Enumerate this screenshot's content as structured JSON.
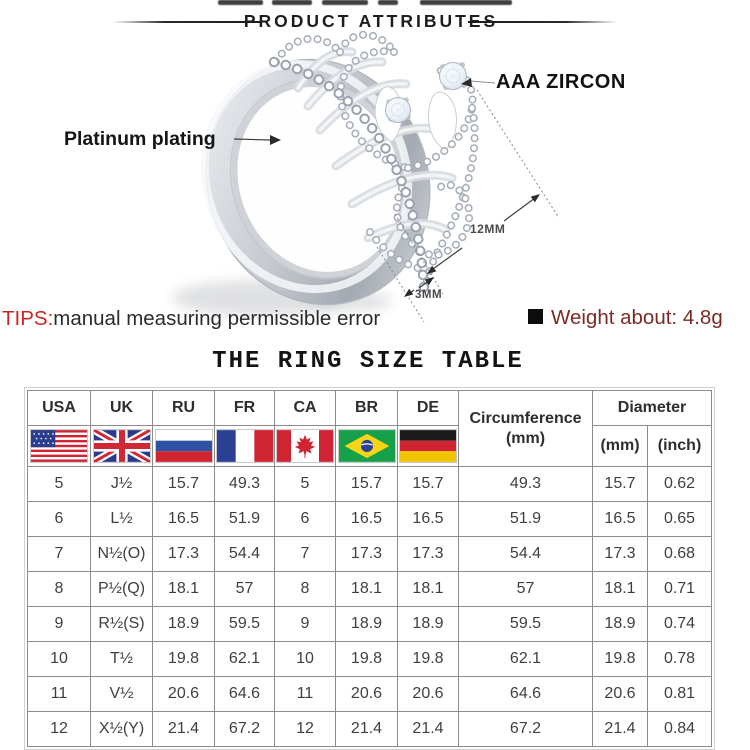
{
  "banner": {
    "section_title": "PRODUCT ATTRIBUTES"
  },
  "figure": {
    "annotations": {
      "plating": "Platinum plating",
      "zircon": "AAA ZIRCON",
      "crown_height": "12MM",
      "band_width": "3MM"
    },
    "icons": {
      "ring": "crown-ring-photo",
      "bullet": "black-square-bullet-icon"
    }
  },
  "notes": {
    "tips_label": "TIPS:",
    "tips_text": "manual measuring permissible error",
    "weight_text": "Weight about: 4.8g"
  },
  "size_table": {
    "title": "THE RING SIZE TABLE",
    "country_columns": [
      {
        "code": "USA",
        "flag": "flag-usa-icon"
      },
      {
        "code": "UK",
        "flag": "flag-uk-icon"
      },
      {
        "code": "RU",
        "flag": "flag-russia-icon"
      },
      {
        "code": "FR",
        "flag": "flag-france-icon"
      },
      {
        "code": "CA",
        "flag": "flag-canada-icon"
      },
      {
        "code": "BR",
        "flag": "flag-brazil-icon"
      },
      {
        "code": "DE",
        "flag": "flag-germany-icon"
      }
    ],
    "circumference_line1": "Circumference",
    "circumference_line2": "(mm)",
    "diameter_header": "Diameter",
    "diameter_mm": "(mm)",
    "diameter_inch": "(inch)",
    "rows": [
      [
        "5",
        "J½",
        "15.7",
        "49.3",
        "5",
        "15.7",
        "15.7",
        "49.3",
        "15.7",
        "0.62"
      ],
      [
        "6",
        "L½",
        "16.5",
        "51.9",
        "6",
        "16.5",
        "16.5",
        "51.9",
        "16.5",
        "0.65"
      ],
      [
        "7",
        "N½(O)",
        "17.3",
        "54.4",
        "7",
        "17.3",
        "17.3",
        "54.4",
        "17.3",
        "0.68"
      ],
      [
        "8",
        "P½(Q)",
        "18.1",
        "57",
        "8",
        "18.1",
        "18.1",
        "57",
        "18.1",
        "0.71"
      ],
      [
        "9",
        "R½(S)",
        "18.9",
        "59.5",
        "9",
        "18.9",
        "18.9",
        "59.5",
        "18.9",
        "0.74"
      ],
      [
        "10",
        "T½",
        "19.8",
        "62.1",
        "10",
        "19.8",
        "19.8",
        "62.1",
        "19.8",
        "0.78"
      ],
      [
        "11",
        "V½",
        "20.6",
        "64.6",
        "11",
        "20.6",
        "20.6",
        "64.6",
        "20.6",
        "0.81"
      ],
      [
        "12",
        "X½(Y)",
        "21.4",
        "67.2",
        "12",
        "21.4",
        "21.4",
        "67.2",
        "21.4",
        "0.84"
      ]
    ]
  },
  "colors": {
    "tips_red": "#cb2424",
    "weight_maroon": "#7b2b25",
    "table_grid": "#8c8c8c",
    "metal_silver": "#c6cad0"
  }
}
